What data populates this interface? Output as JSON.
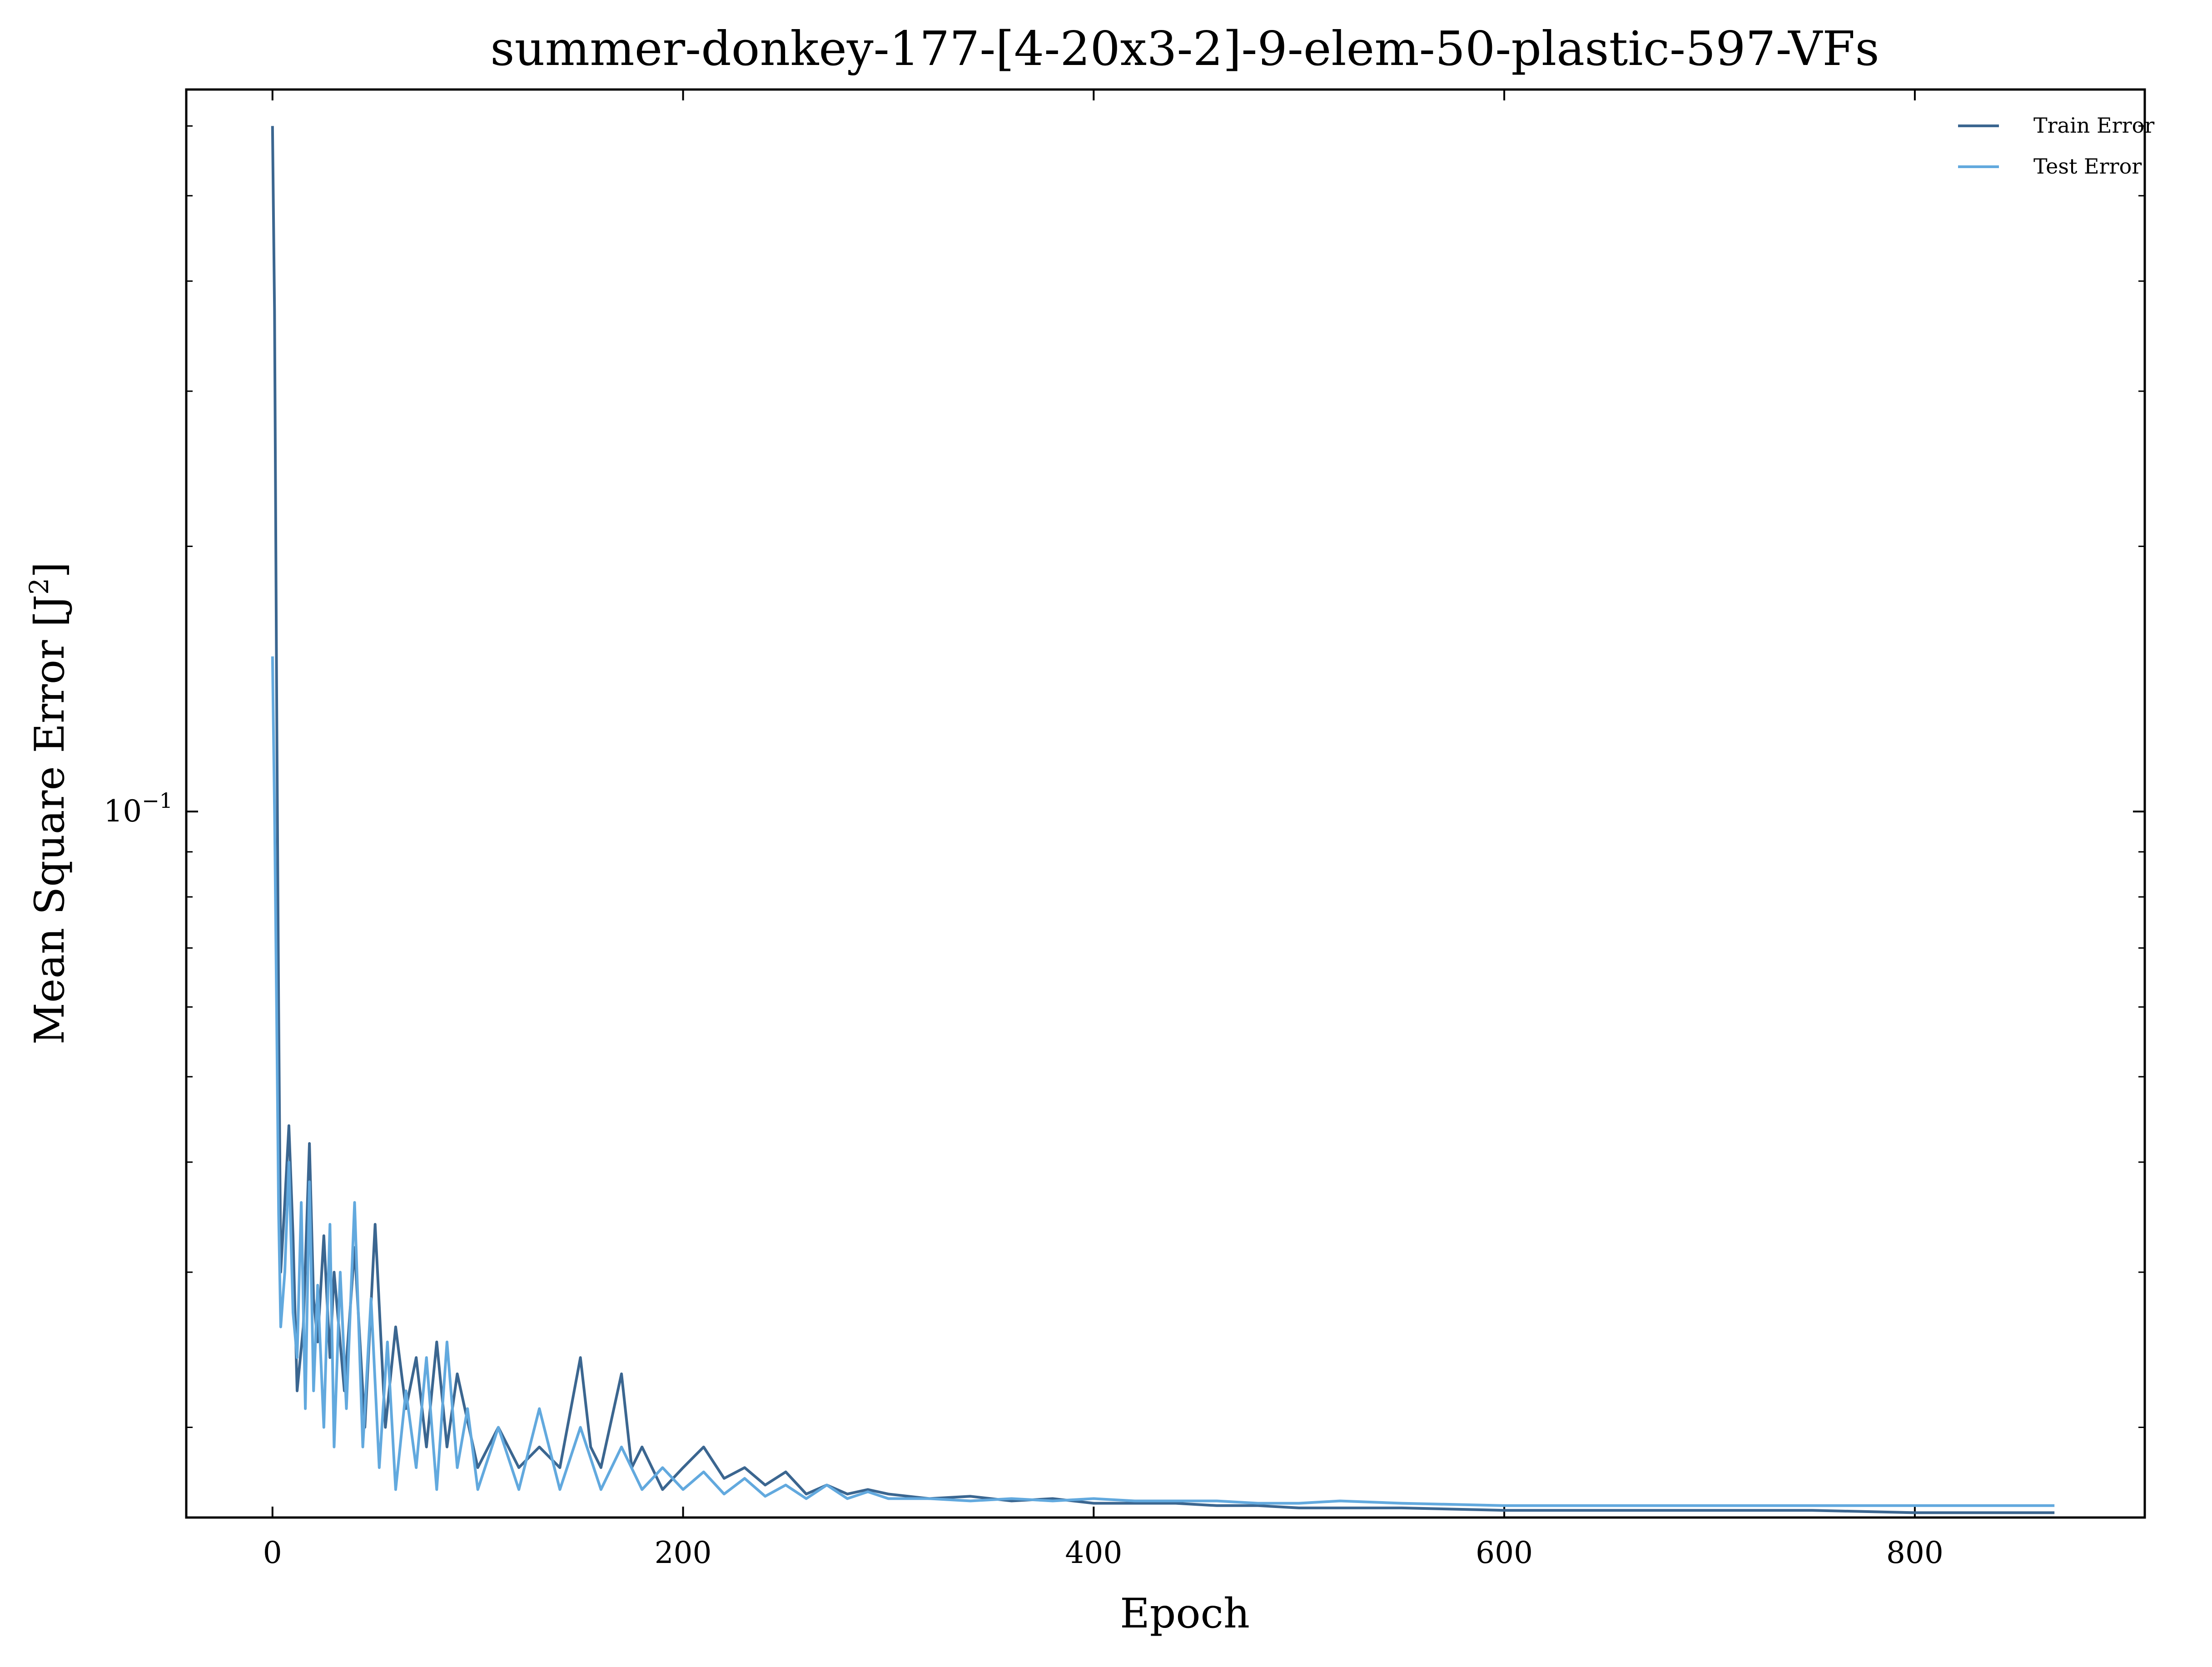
{
  "chart_data": {
    "type": "line",
    "title": "summer-donkey-177-[4-20x3-2]-9-elem-50-plastic-597-VFs",
    "xlabel": "Epoch",
    "ylabel_main": "Mean Square Error [J",
    "ylabel_sup": "2",
    "ylabel_end": "]",
    "y_scale": "log",
    "xlim": [
      -42,
      912
    ],
    "ylim": [
      0.0158,
      0.66
    ],
    "x_ticks": [
      0,
      200,
      400,
      600,
      800
    ],
    "x_tick_labels": [
      "0",
      "200",
      "400",
      "600",
      "800"
    ],
    "y_major_ticks": [
      0.1
    ],
    "y_major_tick_label_base": "10",
    "y_major_tick_label_exp": "−1",
    "y_minor_ticks": [
      0.02,
      0.03,
      0.04,
      0.05,
      0.06,
      0.07,
      0.08,
      0.09,
      0.2,
      0.3,
      0.4,
      0.5,
      0.6
    ],
    "grid": false,
    "legend_position": "top-right",
    "series": [
      {
        "name": "Train Error",
        "color": "#3b6690",
        "x": [
          0,
          1,
          2,
          3,
          4,
          6,
          8,
          10,
          12,
          15,
          18,
          20,
          22,
          25,
          28,
          30,
          35,
          40,
          45,
          50,
          55,
          60,
          65,
          70,
          75,
          80,
          85,
          90,
          100,
          110,
          120,
          130,
          140,
          150,
          155,
          160,
          170,
          175,
          180,
          190,
          200,
          210,
          220,
          230,
          240,
          250,
          260,
          270,
          280,
          290,
          300,
          320,
          340,
          360,
          380,
          400,
          420,
          440,
          460,
          480,
          500,
          550,
          600,
          650,
          700,
          750,
          800,
          868
        ],
        "values": [
          0.6,
          0.37,
          0.14,
          0.06,
          0.03,
          0.036,
          0.044,
          0.033,
          0.022,
          0.026,
          0.042,
          0.028,
          0.025,
          0.033,
          0.024,
          0.03,
          0.022,
          0.032,
          0.02,
          0.034,
          0.02,
          0.026,
          0.021,
          0.024,
          0.019,
          0.025,
          0.019,
          0.023,
          0.018,
          0.02,
          0.018,
          0.019,
          0.018,
          0.024,
          0.019,
          0.018,
          0.023,
          0.018,
          0.019,
          0.017,
          0.018,
          0.019,
          0.0175,
          0.018,
          0.0172,
          0.0178,
          0.0168,
          0.0172,
          0.0168,
          0.017,
          0.0168,
          0.0166,
          0.0167,
          0.0165,
          0.0166,
          0.0164,
          0.0164,
          0.0164,
          0.0163,
          0.0163,
          0.0162,
          0.0162,
          0.0161,
          0.0161,
          0.0161,
          0.0161,
          0.016,
          0.016
        ]
      },
      {
        "name": "Test Error",
        "color": "#62a9de",
        "x": [
          0,
          1,
          2,
          3,
          4,
          6,
          8,
          10,
          12,
          14,
          16,
          18,
          20,
          22,
          25,
          28,
          30,
          33,
          36,
          40,
          44,
          48,
          52,
          56,
          60,
          65,
          70,
          75,
          80,
          85,
          90,
          95,
          100,
          110,
          120,
          130,
          140,
          150,
          160,
          170,
          180,
          190,
          200,
          210,
          220,
          230,
          240,
          250,
          260,
          270,
          280,
          290,
          300,
          320,
          340,
          360,
          380,
          400,
          420,
          440,
          460,
          480,
          500,
          520,
          550,
          600,
          650,
          700,
          750,
          800,
          868
        ],
        "values": [
          0.15,
          0.1,
          0.06,
          0.035,
          0.026,
          0.03,
          0.04,
          0.027,
          0.024,
          0.036,
          0.021,
          0.038,
          0.022,
          0.029,
          0.02,
          0.034,
          0.019,
          0.03,
          0.021,
          0.036,
          0.019,
          0.028,
          0.018,
          0.025,
          0.017,
          0.022,
          0.018,
          0.024,
          0.017,
          0.025,
          0.018,
          0.021,
          0.017,
          0.02,
          0.017,
          0.021,
          0.017,
          0.02,
          0.017,
          0.019,
          0.017,
          0.018,
          0.017,
          0.0178,
          0.0168,
          0.0175,
          0.0167,
          0.0172,
          0.0166,
          0.0172,
          0.0166,
          0.0169,
          0.0166,
          0.0166,
          0.0165,
          0.0166,
          0.0165,
          0.0166,
          0.0165,
          0.0165,
          0.0165,
          0.0164,
          0.0164,
          0.0165,
          0.0164,
          0.0163,
          0.0163,
          0.0163,
          0.0163,
          0.0163,
          0.0163
        ]
      }
    ]
  }
}
